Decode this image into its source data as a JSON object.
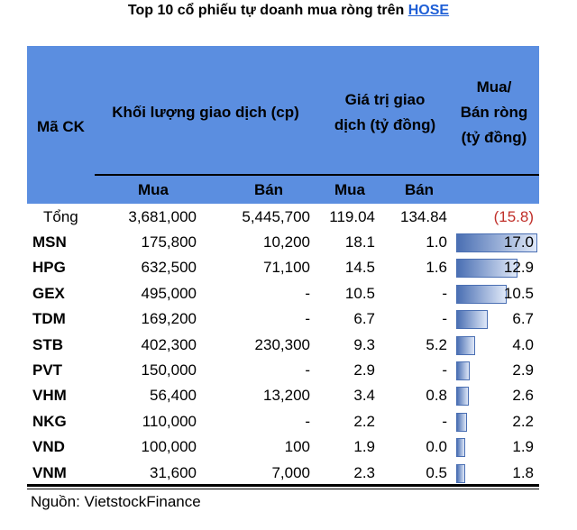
{
  "title": {
    "text": "Top 10 cổ phiếu tự doanh mua ròng trên ",
    "link": "HOSE"
  },
  "header": {
    "code": "Mã CK",
    "volume": "Khối lượng giao dịch (cp)",
    "value_line1": "Giá trị giao",
    "value_line2": "dịch (tỷ đồng)",
    "net_line1": "Mua/",
    "net_line2": "Bán ròng",
    "net_line3": "(tỷ đồng)",
    "buy": "Mua",
    "sell": "Bán",
    "buy2": "Mua",
    "sell2": "Bán"
  },
  "total": {
    "label": "Tổng",
    "vol_buy": "3,681,000",
    "vol_sell": "5,445,700",
    "val_buy": "119.04",
    "val_sell": "134.84",
    "net": "(15.8)"
  },
  "rows": [
    {
      "code": "MSN",
      "vol_buy": "175,800",
      "vol_sell": "10,200",
      "val_buy": "18.1",
      "val_sell": "1.0",
      "net": "17.0",
      "net_value": 17.0
    },
    {
      "code": "HPG",
      "vol_buy": "632,500",
      "vol_sell": "71,100",
      "val_buy": "14.5",
      "val_sell": "1.6",
      "net": "12.9",
      "net_value": 12.9
    },
    {
      "code": "GEX",
      "vol_buy": "495,000",
      "vol_sell": "-",
      "val_buy": "10.5",
      "val_sell": "-",
      "net": "10.5",
      "net_value": 10.5
    },
    {
      "code": "TDM",
      "vol_buy": "169,200",
      "vol_sell": "-",
      "val_buy": "6.7",
      "val_sell": "-",
      "net": "6.7",
      "net_value": 6.7
    },
    {
      "code": "STB",
      "vol_buy": "402,300",
      "vol_sell": "230,300",
      "val_buy": "9.3",
      "val_sell": "5.2",
      "net": "4.0",
      "net_value": 4.0
    },
    {
      "code": "PVT",
      "vol_buy": "150,000",
      "vol_sell": "-",
      "val_buy": "2.9",
      "val_sell": "-",
      "net": "2.9",
      "net_value": 2.9
    },
    {
      "code": "VHM",
      "vol_buy": "56,400",
      "vol_sell": "13,200",
      "val_buy": "3.4",
      "val_sell": "0.8",
      "net": "2.6",
      "net_value": 2.6
    },
    {
      "code": "NKG",
      "vol_buy": "110,000",
      "vol_sell": "-",
      "val_buy": "2.2",
      "val_sell": "-",
      "net": "2.2",
      "net_value": 2.2
    },
    {
      "code": "VND",
      "vol_buy": "100,000",
      "vol_sell": "100",
      "val_buy": "1.9",
      "val_sell": "0.0",
      "net": "1.9",
      "net_value": 1.9
    },
    {
      "code": "VNM",
      "vol_buy": "31,600",
      "vol_sell": "7,000",
      "val_buy": "2.3",
      "val_sell": "0.5",
      "net": "1.8",
      "net_value": 1.8
    }
  ],
  "source": "Nguồn: VietstockFinance",
  "colors": {
    "header_bg": "#5b8ee0",
    "bar": "#4a6fb3",
    "negative": "#c0302a",
    "link": "#1f5fd6"
  }
}
